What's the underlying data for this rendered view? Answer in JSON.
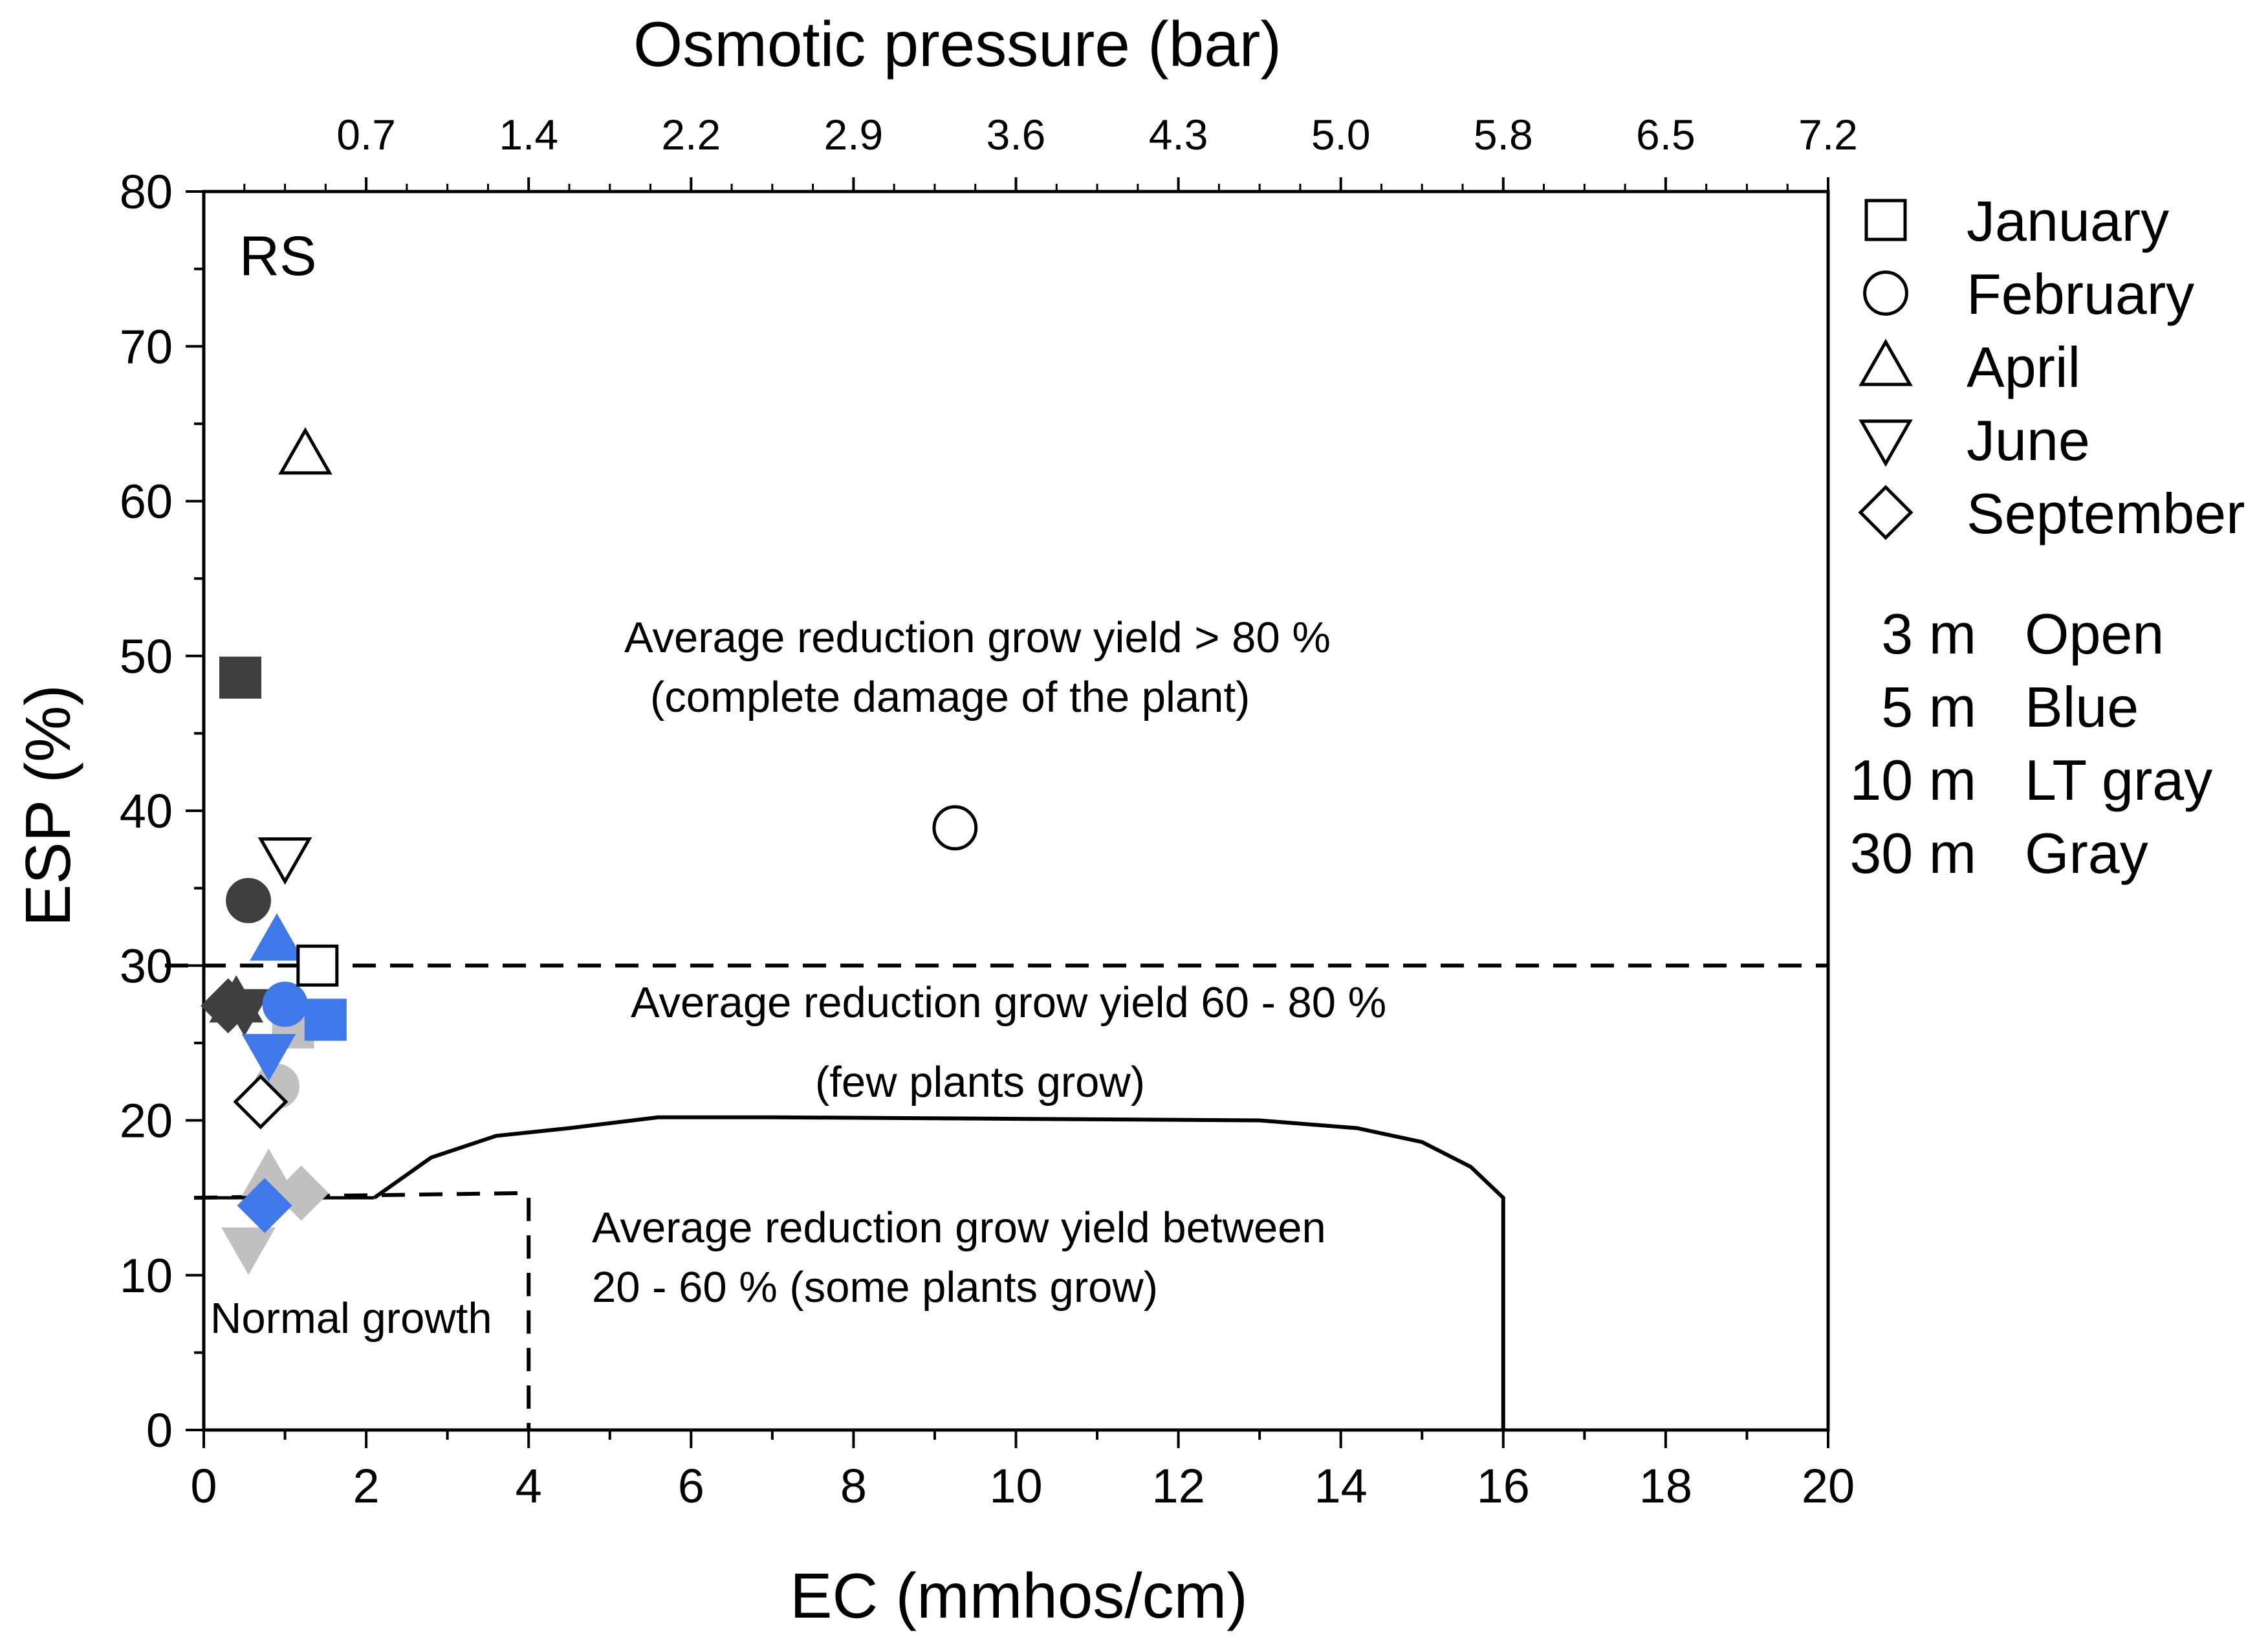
{
  "chart_data": {
    "type": "scatter",
    "panel_label": "RS",
    "xlabel": "EC (mmhos/cm)",
    "ylabel": "ESP (%)",
    "top_xlabel": "Osmotic pressure (bar)",
    "xlim": [
      0,
      20
    ],
    "ylim": [
      0,
      80
    ],
    "x_ticks": [
      "0",
      "2",
      "4",
      "6",
      "8",
      "10",
      "12",
      "14",
      "16",
      "18",
      "20"
    ],
    "y_ticks": [
      "0",
      "10",
      "20",
      "30",
      "40",
      "50",
      "60",
      "70",
      "80"
    ],
    "top_ticks": [
      {
        "ec": 2,
        "label": "0.7"
      },
      {
        "ec": 4,
        "label": "1.4"
      },
      {
        "ec": 6,
        "label": "2.2"
      },
      {
        "ec": 8,
        "label": "2.9"
      },
      {
        "ec": 10,
        "label": "3.6"
      },
      {
        "ec": 12,
        "label": "4.3"
      },
      {
        "ec": 14,
        "label": "5.0"
      },
      {
        "ec": 16,
        "label": "5.8"
      },
      {
        "ec": 18,
        "label": "6.5"
      },
      {
        "ec": 20,
        "label": "7.2"
      }
    ],
    "colors": {
      "3 m": "#ffffff",
      "5 m": "#3f78e8",
      "10 m": "#c0c0c0",
      "30 m": "#3f3f3f"
    },
    "points": [
      {
        "month": "January",
        "depth": "3 m",
        "x": 1.4,
        "y": 30
      },
      {
        "month": "February",
        "depth": "3 m",
        "x": 9.25,
        "y": 38.9
      },
      {
        "month": "April",
        "depth": "3 m",
        "x": 1.25,
        "y": 63
      },
      {
        "month": "June",
        "depth": "3 m",
        "x": 1.0,
        "y": 37
      },
      {
        "month": "September",
        "depth": "3 m",
        "x": 0.7,
        "y": 21.2
      },
      {
        "month": "January",
        "depth": "5 m",
        "x": 1.5,
        "y": 26.5
      },
      {
        "month": "February",
        "depth": "5 m",
        "x": 1.0,
        "y": 27.5
      },
      {
        "month": "April",
        "depth": "5 m",
        "x": 0.9,
        "y": 31.6
      },
      {
        "month": "June",
        "depth": "5 m",
        "x": 0.8,
        "y": 24.3
      },
      {
        "month": "September",
        "depth": "5 m",
        "x": 0.75,
        "y": 14.5
      },
      {
        "month": "January",
        "depth": "10 m",
        "x": 1.1,
        "y": 26
      },
      {
        "month": "February",
        "depth": "10 m",
        "x": 0.9,
        "y": 22.2
      },
      {
        "month": "April",
        "depth": "10 m",
        "x": 0.8,
        "y": 16.4
      },
      {
        "month": "June",
        "depth": "10 m",
        "x": 0.55,
        "y": 11.8
      },
      {
        "month": "September",
        "depth": "10 m",
        "x": 1.2,
        "y": 15.3
      },
      {
        "month": "January",
        "depth": "30 m",
        "x": 0.45,
        "y": 48.6
      },
      {
        "month": "February",
        "depth": "30 m",
        "x": 0.55,
        "y": 34.2
      },
      {
        "month": "April",
        "depth": "30 m",
        "x": 0.4,
        "y": 27.6
      },
      {
        "month": "June",
        "depth": "30 m",
        "x": 0.5,
        "y": 27.2
      },
      {
        "month": "September",
        "depth": "30 m",
        "x": 0.3,
        "y": 27.4
      }
    ],
    "boundaries": {
      "esp_threshold": 30,
      "normal_growth_ec": 4,
      "normal_growth_esp": 15,
      "curve": [
        [
          2.1,
          15
        ],
        [
          2.8,
          17.6
        ],
        [
          3.6,
          19
        ],
        [
          4.5,
          19.5
        ],
        [
          5.6,
          20.2
        ],
        [
          7,
          20.2
        ],
        [
          10,
          20.1
        ],
        [
          13,
          20.0
        ],
        [
          14.2,
          19.5
        ],
        [
          15,
          18.6
        ],
        [
          15.6,
          17
        ],
        [
          16,
          15
        ],
        [
          16,
          0
        ]
      ]
    },
    "annotations": [
      "Average reduction grow yield > 80 %",
      "(complete damage of the plant)",
      "Average reduction grow yield 60 - 80 %",
      "(few plants grow)",
      "Average reduction grow yield between",
      "20 - 60 % (some plants grow)",
      "Normal growth"
    ],
    "legend_months": [
      {
        "name": "January",
        "marker": "square"
      },
      {
        "name": "February",
        "marker": "circle"
      },
      {
        "name": "April",
        "marker": "triangle-up"
      },
      {
        "name": "June",
        "marker": "triangle-down"
      },
      {
        "name": "September",
        "marker": "diamond"
      }
    ],
    "legend_depths": [
      {
        "depth": "3 m",
        "color_name": "Open"
      },
      {
        "depth": "5 m",
        "color_name": "Blue"
      },
      {
        "depth": "10 m",
        "color_name": "LT gray"
      },
      {
        "depth": "30 m",
        "color_name": "Gray"
      }
    ]
  }
}
